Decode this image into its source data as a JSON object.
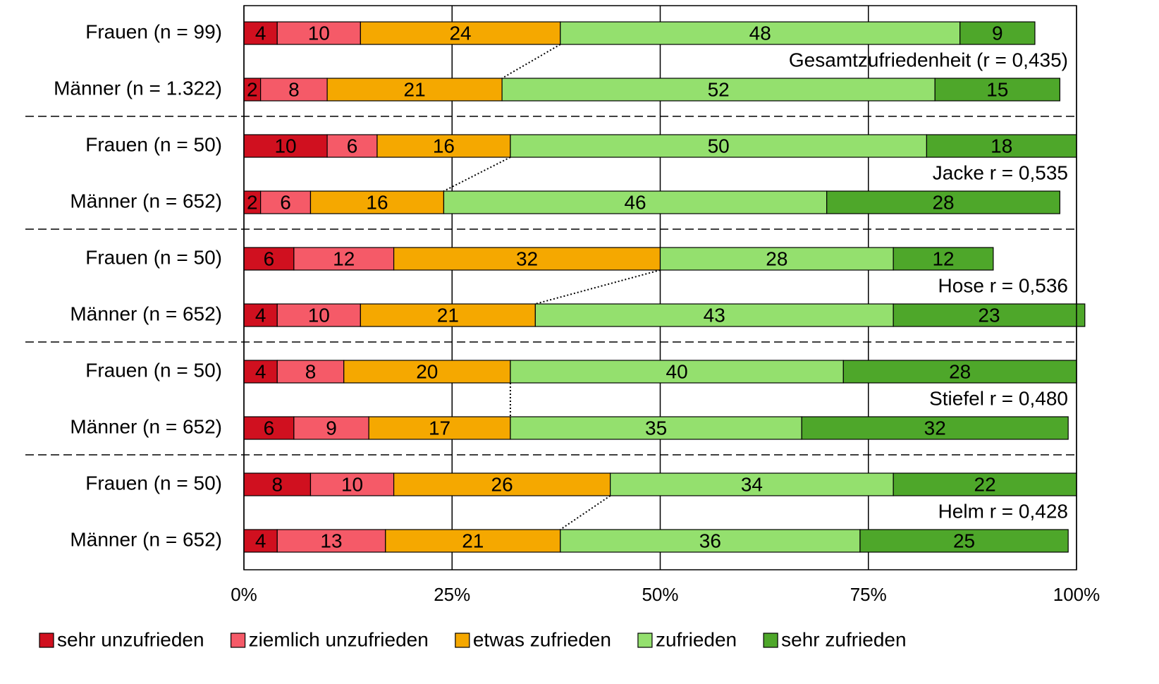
{
  "chart_data": {
    "type": "bar",
    "orientation": "horizontal",
    "stacked": true,
    "categories": [
      "Frauen (n = 99)",
      "Männer (n = 1.322)",
      "Frauen (n = 50)",
      "Männer (n = 652)",
      "Frauen (n = 50)",
      "Männer (n = 652)",
      "Frauen (n = 50)",
      "Männer (n = 652)",
      "Frauen (n = 50)",
      "Männer (n = 652)"
    ],
    "series": [
      {
        "name": "sehr unzufrieden",
        "color": "#d0101f",
        "values": [
          4,
          2,
          10,
          2,
          6,
          4,
          4,
          6,
          8,
          4
        ]
      },
      {
        "name": "ziemlich unzufrieden",
        "color": "#f55a68",
        "values": [
          10,
          8,
          6,
          6,
          12,
          10,
          8,
          9,
          10,
          13
        ]
      },
      {
        "name": "etwas zufrieden",
        "color": "#f5a800",
        "values": [
          24,
          21,
          16,
          16,
          32,
          21,
          20,
          17,
          26,
          21
        ]
      },
      {
        "name": "zufrieden",
        "color": "#94e06e",
        "values": [
          48,
          52,
          50,
          46,
          28,
          43,
          40,
          35,
          34,
          36
        ]
      },
      {
        "name": "sehr zufrieden",
        "color": "#4ea72a",
        "values": [
          9,
          15,
          18,
          28,
          12,
          23,
          28,
          32,
          22,
          25
        ]
      }
    ],
    "annotations": [
      "Gesamtzufriedenheit (r = 0,435)",
      "Jacke r = 0,535",
      "Hose r = 0,536",
      "Stiefel r = 0,480",
      "Helm r = 0,428"
    ],
    "xlim": [
      0,
      100
    ],
    "xticks": [
      {
        "value": 0,
        "label": "0%"
      },
      {
        "value": 25,
        "label": "25%"
      },
      {
        "value": 50,
        "label": "50%"
      },
      {
        "value": 75,
        "label": "75%"
      },
      {
        "value": 100,
        "label": "100%"
      }
    ],
    "grid": true,
    "legend": "bottom"
  }
}
